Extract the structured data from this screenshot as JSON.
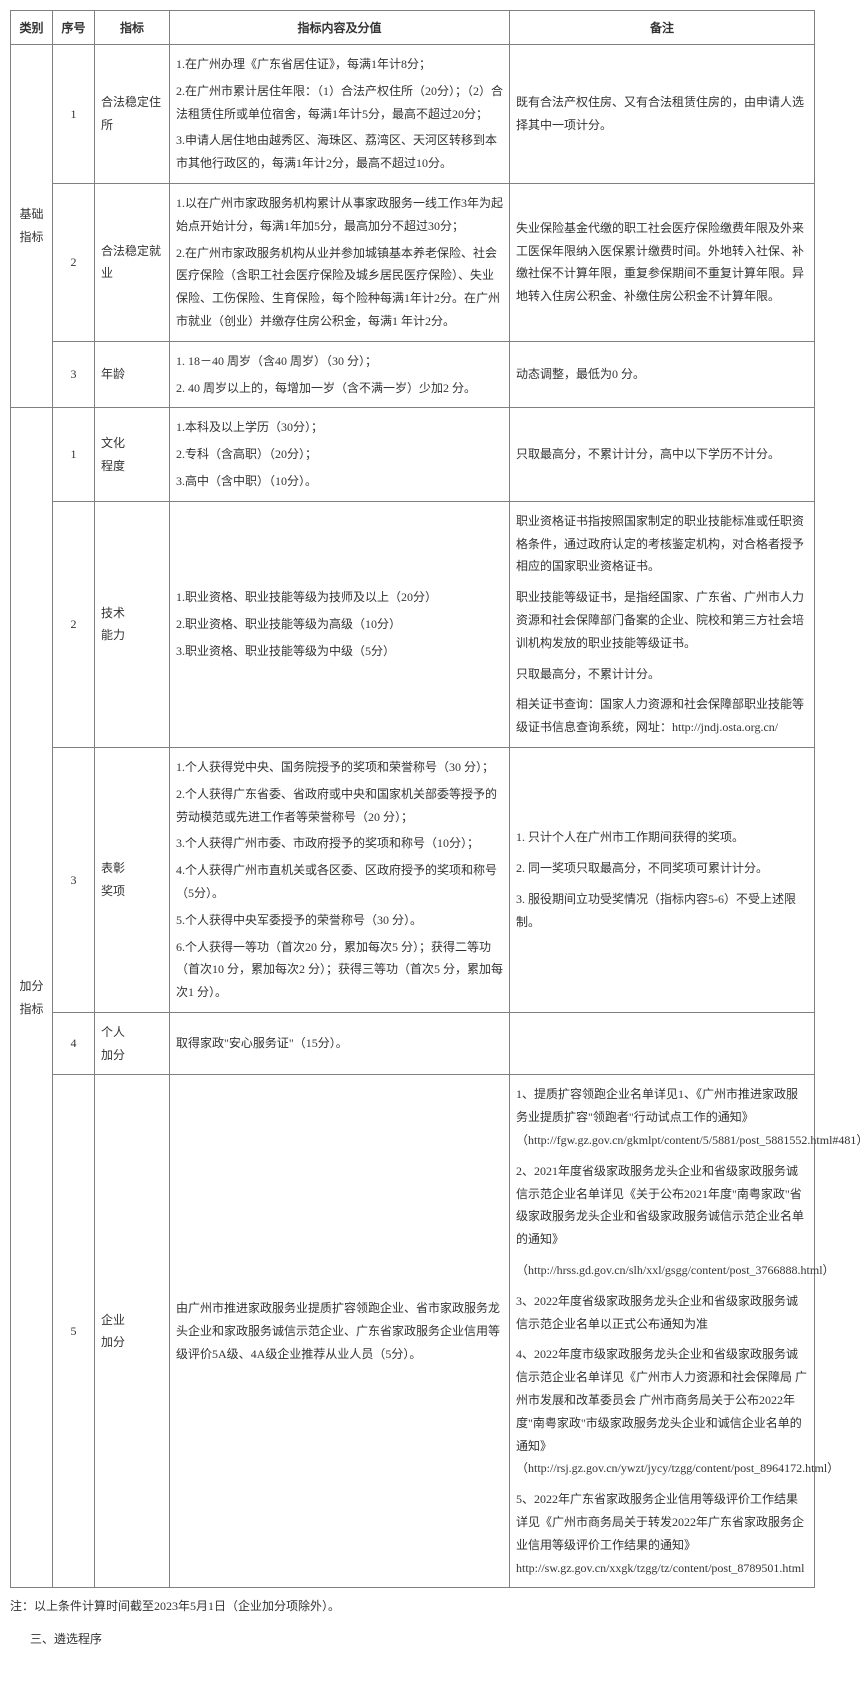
{
  "headers": {
    "category": "类别",
    "seq": "序号",
    "indicator": "指标",
    "content": "指标内容及分值",
    "remark": "备注"
  },
  "categories": [
    {
      "name": "基础指标",
      "rowCount": 3
    },
    {
      "name": "加分指标",
      "rowCount": 5
    }
  ],
  "rows": [
    {
      "seq": "1",
      "indicator": "合法稳定住所",
      "content": [
        "1.在广州办理《广东省居住证》，每满1年计8分；",
        "2.在广州市累计居住年限：（1）合法产权住所（20分）；（2）合法租赁住所或单位宿舍，每满1年计5分，最高不超过20分；",
        "3.申请人居住地由越秀区、海珠区、荔湾区、天河区转移到本市其他行政区的，每满1年计2分，最高不超过10分。"
      ],
      "remark": [
        "既有合法产权住房、又有合法租赁住房的，由申请人选择其中一项计分。"
      ]
    },
    {
      "seq": "2",
      "indicator": "合法稳定就业",
      "content": [
        "1.以在广州市家政服务机构累计从事家政服务一线工作3年为起始点开始计分，每满1年加5分，最高加分不超过30分；",
        "2.在广州市家政服务机构从业并参加城镇基本养老保险、社会医疗保险（含职工社会医疗保险及城乡居民医疗保险）、失业保险、工伤保险、生育保险，每个险种每满1年计2分。在广州市就业（创业）并缴存住房公积金，每满1 年计2分。"
      ],
      "remark": [
        "失业保险基金代缴的职工社会医疗保险缴费年限及外来工医保年限纳入医保累计缴费时间。外地转入社保、补缴社保不计算年限，重复参保期间不重复计算年限。异地转入住房公积金、补缴住房公积金不计算年限。"
      ]
    },
    {
      "seq": "3",
      "indicator": "年龄",
      "content": [
        "1. 18－40 周岁（含40 周岁）（30 分）；",
        "2. 40 周岁以上的，每增加一岁（含不满一岁）少加2 分。"
      ],
      "remark": [
        "动态调整，最低为0 分。"
      ]
    },
    {
      "seq": "1",
      "indicator": "文化\n程度",
      "content": [
        "1.本科及以上学历（30分）；",
        "2.专科（含高职）（20分）；",
        "3.高中（含中职）（10分）。"
      ],
      "remark": [
        "只取最高分，不累计计分，高中以下学历不计分。"
      ]
    },
    {
      "seq": "2",
      "indicator": "技术\n能力",
      "content": [
        "1.职业资格、职业技能等级为技师及以上（20分）",
        "2.职业资格、职业技能等级为高级（10分）",
        "3.职业资格、职业技能等级为中级（5分）"
      ],
      "remark": [
        "职业资格证书指按照国家制定的职业技能标准或任职资格条件，通过政府认定的考核鉴定机构，对合格者授予相应的国家职业资格证书。",
        "职业技能等级证书，是指经国家、广东省、广州市人力资源和社会保障部门备案的企业、院校和第三方社会培训机构发放的职业技能等级证书。",
        "只取最高分，不累计计分。",
        "相关证书查询：国家人力资源和社会保障部职业技能等级证书信息查询系统，网址：http://jndj.osta.org.cn/"
      ]
    },
    {
      "seq": "3",
      "indicator": "表彰\n奖项",
      "content": [
        "1.个人获得党中央、国务院授予的奖项和荣誉称号（30 分）；",
        "2.个人获得广东省委、省政府或中央和国家机关部委等授予的劳动模范或先进工作者等荣誉称号（20 分）；",
        "3.个人获得广州市委、市政府授予的奖项和称号（10分）；",
        "4.个人获得广州市直机关或各区委、区政府授予的奖项和称号（5分）。",
        "5.个人获得中央军委授予的荣誉称号（30 分）。",
        "6.个人获得一等功（首次20 分，累加每次5 分）；获得二等功（首次10 分，累加每次2 分）；获得三等功（首次5 分，累加每次1 分）。"
      ],
      "remark": [
        "1. 只计个人在广州市工作期间获得的奖项。",
        "2. 同一奖项只取最高分，不同奖项可累计计分。",
        "3. 服役期间立功受奖情况（指标内容5-6）不受上述限制。"
      ]
    },
    {
      "seq": "4",
      "indicator": "个人\n加分",
      "content": [
        "取得家政\"安心服务证\"（15分）。"
      ],
      "remark": []
    },
    {
      "seq": "5",
      "indicator": "企业\n加分",
      "content": [
        "由广州市推进家政服务业提质扩容领跑企业、省市家政服务龙头企业和家政服务诚信示范企业、广东省家政服务企业信用等级评价5A级、4A级企业推荐从业人员（5分）。"
      ],
      "remark": [
        "1、提质扩容领跑企业名单详见1、《广州市推进家政服务业提质扩容\"领跑者\"行动试点工作的通知》（http://fgw.gz.gov.cn/gkmlpt/content/5/5881/post_5881552.html#481）",
        "2、2021年度省级家政服务龙头企业和省级家政服务诚信示范企业名单详见《关于公布2021年度\"南粤家政\"省级家政服务龙头企业和省级家政服务诚信示范企业名单的通知》",
        "（http://hrss.gd.gov.cn/slh/xxl/gsgg/content/post_3766888.html）",
        "3、2022年度省级家政服务龙头企业和省级家政服务诚信示范企业名单以正式公布通知为准",
        "4、2022年度市级家政服务龙头企业和省级家政服务诚信示范企业名单详见《广州市人力资源和社会保障局 广州市发展和改革委员会 广州市商务局关于公布2022年度\"南粤家政\"市级家政服务龙头企业和诚信企业名单的通知》（http://rsj.gz.gov.cn/ywzt/jycy/tzgg/content/post_8964172.html）",
        "5、2022年广东省家政服务企业信用等级评价工作结果详见《广州市商务局关于转发2022年广东省家政服务企业信用等级评价工作结果的通知》http://sw.gz.gov.cn/xxgk/tzgg/tz/content/post_8789501.html"
      ]
    }
  ],
  "note": "注：以上条件计算时间截至2023年5月1日（企业加分项除外）。",
  "sectionTitle": "三、遴选程序"
}
